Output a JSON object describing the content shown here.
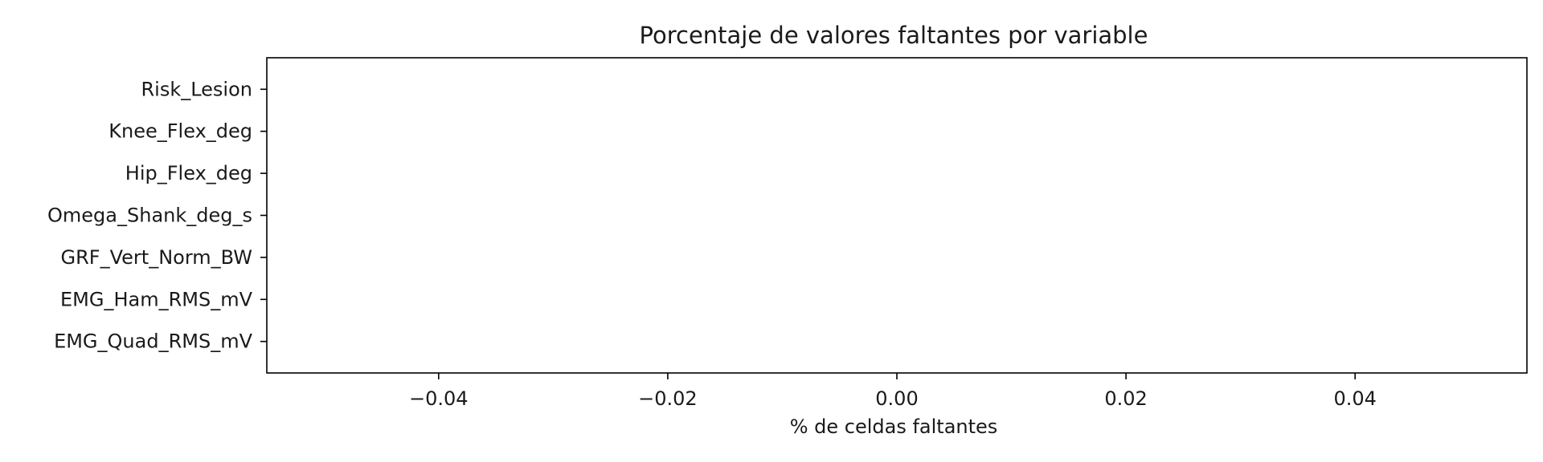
{
  "chart_data": {
    "type": "bar",
    "orientation": "horizontal",
    "title": "Porcentaje de valores faltantes por variable",
    "xlabel": "% de celdas faltantes",
    "ylabel": "",
    "categories": [
      "Risk_Lesion",
      "Knee_Flex_deg",
      "Hip_Flex_deg",
      "Omega_Shank_deg_s",
      "GRF_Vert_Norm_BW",
      "EMG_Ham_RMS_mV",
      "EMG_Quad_RMS_mV"
    ],
    "values": [
      0,
      0,
      0,
      0,
      0,
      0,
      0
    ],
    "xlim": [
      -0.055,
      0.055
    ],
    "x_ticks": [
      -0.04,
      -0.02,
      0.0,
      0.02,
      0.04
    ],
    "x_tick_labels": [
      "−0.04",
      "−0.02",
      "0.00",
      "0.02",
      "0.04"
    ],
    "grid": false,
    "legend": "none",
    "bar_color": "#1f77b4"
  }
}
